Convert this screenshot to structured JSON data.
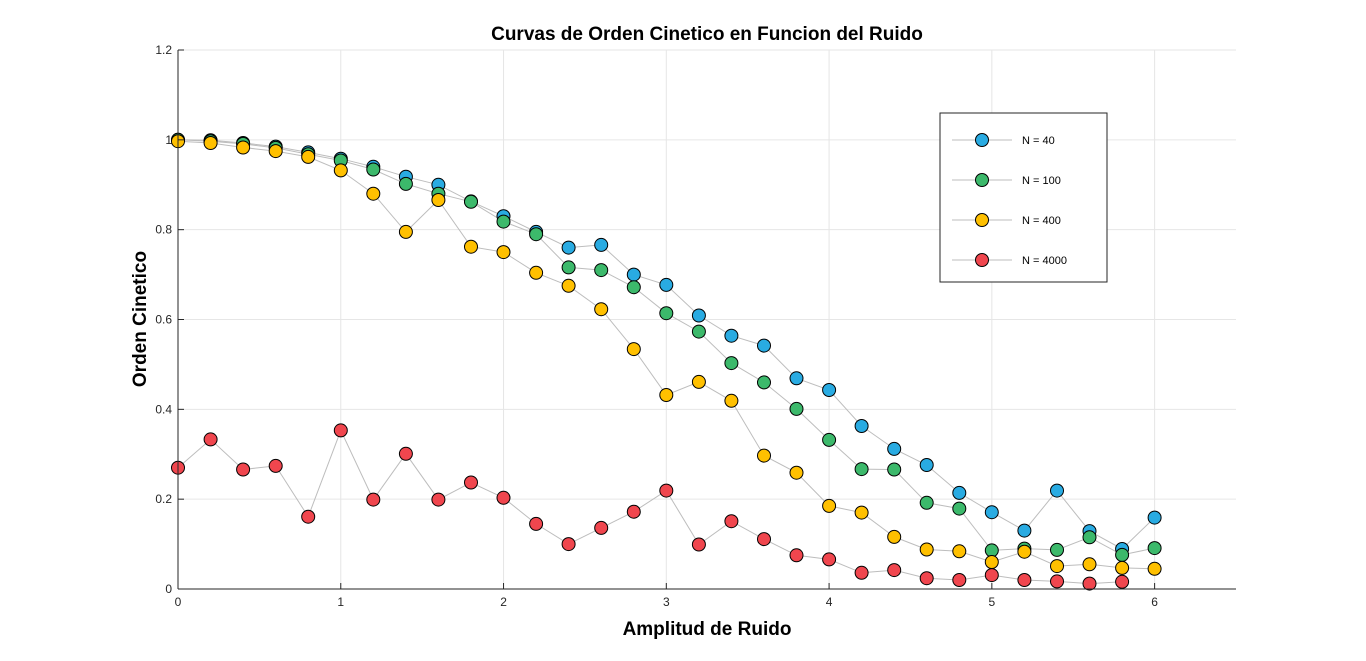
{
  "chart_data": {
    "type": "scatter",
    "title": "Curvas de Orden Cinetico en Funcion del Ruido",
    "xlabel": "Amplitud de Ruido",
    "ylabel": "Orden Cinetico",
    "xlim": [
      0,
      6.5
    ],
    "ylim": [
      0,
      1.2
    ],
    "xticks": [
      0,
      1,
      2,
      3,
      4,
      5,
      6
    ],
    "xtick_labels": [
      "0",
      "1",
      "2",
      "3",
      "4",
      "5",
      "6"
    ],
    "yticks": [
      0,
      0.2,
      0.4,
      0.6,
      0.8,
      1,
      1.2
    ],
    "ytick_labels": [
      "0",
      "0.2",
      "0.4",
      "0.6",
      "0.8",
      "1",
      "1.2"
    ],
    "grid": true,
    "legend_position": "top-right",
    "x": [
      0,
      0.2,
      0.4,
      0.6,
      0.8,
      1.0,
      1.2,
      1.4,
      1.6,
      1.8,
      2.0,
      2.2,
      2.4,
      2.6,
      2.8,
      3.0,
      3.2,
      3.4,
      3.6,
      3.8,
      4.0,
      4.2,
      4.4,
      4.6,
      4.8,
      5.0,
      5.2,
      5.4,
      5.6,
      5.8,
      6.0
    ],
    "series": [
      {
        "name": "N = 40",
        "color": "#29abe2",
        "values": [
          1.0,
          0.999,
          0.993,
          0.985,
          0.972,
          0.958,
          0.94,
          0.918,
          0.9,
          0.863,
          0.83,
          0.795,
          0.76,
          0.766,
          0.7,
          0.677,
          0.609,
          0.564,
          0.542,
          0.469,
          0.443,
          0.363,
          0.312,
          0.276,
          0.214,
          0.171,
          0.13,
          0.219,
          0.129,
          0.089,
          0.159
        ]
      },
      {
        "name": "N = 100",
        "color": "#3cb96b",
        "values": [
          1.0,
          0.997,
          0.991,
          0.982,
          0.968,
          0.954,
          0.934,
          0.902,
          0.88,
          0.862,
          0.818,
          0.79,
          0.716,
          0.71,
          0.672,
          0.614,
          0.573,
          0.503,
          0.46,
          0.401,
          0.332,
          0.267,
          0.266,
          0.192,
          0.179,
          0.086,
          0.09,
          0.087,
          0.115,
          0.076,
          0.091
        ]
      },
      {
        "name": "N = 400",
        "color": "#ffc000",
        "values": [
          0.997,
          0.993,
          0.983,
          0.975,
          0.962,
          0.932,
          0.88,
          0.795,
          0.866,
          0.762,
          0.75,
          0.704,
          0.675,
          0.623,
          0.534,
          0.432,
          0.461,
          0.419,
          0.297,
          0.259,
          0.185,
          0.17,
          0.116,
          0.088,
          0.084,
          0.06,
          0.083,
          0.051,
          0.055,
          0.047,
          0.045
        ]
      },
      {
        "name": "N = 4000",
        "color": "#f0464e",
        "values": [
          0.27,
          0.333,
          0.266,
          0.274,
          0.161,
          0.353,
          0.199,
          0.301,
          0.199,
          0.237,
          0.203,
          0.145,
          0.1,
          0.136,
          0.172,
          0.219,
          0.099,
          0.151,
          0.111,
          0.075,
          0.066,
          0.036,
          0.042,
          0.024,
          0.02,
          0.031,
          0.02,
          0.017,
          0.012,
          0.016,
          null
        ]
      }
    ]
  }
}
